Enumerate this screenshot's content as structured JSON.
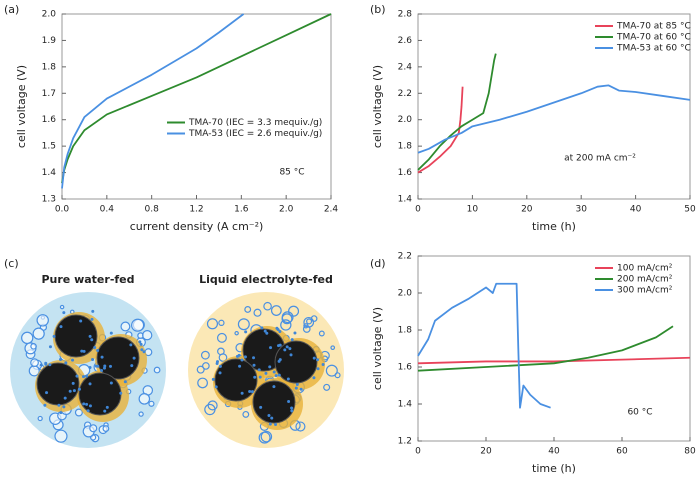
{
  "chart_data": [
    {
      "type": "line",
      "panel_label": "(a)",
      "xlabel": "current density (A cm⁻²)",
      "ylabel": "cell voltage (V)",
      "annotation": "85 °C",
      "xlim": [
        0,
        2.4
      ],
      "xticks": [
        {
          "value": 0,
          "label": "0.0"
        },
        0.4,
        0.8,
        1.2,
        1.6,
        {
          "value": 2,
          "label": "2.0"
        },
        2.4
      ],
      "ylim": [
        1.3,
        2.0
      ],
      "yticks": [
        1.3,
        1.4,
        1.5,
        1.6,
        1.7,
        1.8,
        1.9,
        {
          "value": 2,
          "label": "2.0"
        }
      ],
      "legend": "center right",
      "series": [
        {
          "name": "TMA-70 (IEC = 3.3 mequiv./g)",
          "color": "#2e8b2e",
          "x": [
            0,
            0.02,
            0.05,
            0.1,
            0.2,
            0.4,
            0.8,
            1.2,
            1.6,
            2.0,
            2.4
          ],
          "values": [
            1.36,
            1.41,
            1.45,
            1.5,
            1.56,
            1.62,
            1.69,
            1.76,
            1.84,
            1.92,
            2.0
          ]
        },
        {
          "name": "TMA-53 (IEC = 2.6 mequiv./g)",
          "color": "#4a90e2",
          "x": [
            0,
            0.02,
            0.05,
            0.1,
            0.2,
            0.4,
            0.8,
            1.2,
            1.4,
            1.62
          ],
          "values": [
            1.34,
            1.42,
            1.47,
            1.53,
            1.61,
            1.68,
            1.77,
            1.87,
            1.93,
            2.0
          ]
        }
      ]
    },
    {
      "type": "line",
      "panel_label": "(b)",
      "xlabel": "time (h)",
      "ylabel": "cell voltage (V)",
      "annotation": "at 200 mA cm⁻²",
      "xlim": [
        0,
        50
      ],
      "xticks": [
        0,
        10,
        20,
        30,
        40,
        50
      ],
      "ylim": [
        1.4,
        2.8
      ],
      "yticks": [
        1.4,
        1.6,
        1.8,
        {
          "value": 2,
          "label": "2.0"
        },
        2.2,
        2.4,
        2.6,
        2.8
      ],
      "legend": "upper right",
      "series": [
        {
          "name": "TMA-70 at 85 °C",
          "color": "#e8435a",
          "x": [
            0,
            2,
            4,
            6,
            7.5,
            7.8,
            8,
            8.2
          ],
          "values": [
            1.6,
            1.65,
            1.72,
            1.8,
            1.9,
            2.0,
            2.1,
            2.25
          ]
        },
        {
          "name": "TMA-70 at 60 °C",
          "color": "#2e8b2e",
          "x": [
            0,
            2,
            4,
            6,
            8,
            10,
            12,
            13,
            14,
            14.3
          ],
          "values": [
            1.62,
            1.7,
            1.8,
            1.88,
            1.95,
            2.0,
            2.05,
            2.2,
            2.45,
            2.5
          ]
        },
        {
          "name": "TMA-53 at 60 °C",
          "color": "#4a90e2",
          "x": [
            0,
            2,
            5,
            8,
            10,
            15,
            20,
            25,
            30,
            33,
            35,
            37,
            40,
            45,
            50
          ],
          "values": [
            1.75,
            1.78,
            1.85,
            1.9,
            1.95,
            2.0,
            2.06,
            2.13,
            2.2,
            2.25,
            2.26,
            2.22,
            2.21,
            2.18,
            2.15
          ]
        }
      ]
    },
    {
      "type": "line",
      "panel_label": "(d)",
      "xlabel": "time (h)",
      "ylabel": "cell voltage (V)",
      "annotation": "60 °C",
      "xlim": [
        0,
        80
      ],
      "xticks": [
        0,
        20,
        40,
        60,
        80
      ],
      "ylim": [
        1.2,
        2.2
      ],
      "yticks": [
        1.2,
        1.4,
        1.6,
        1.8,
        {
          "value": 2,
          "label": "2.0"
        },
        2.2
      ],
      "legend": "upper right",
      "series": [
        {
          "name": "100 mA/cm²",
          "color": "#e8435a",
          "x": [
            0,
            20,
            40,
            60,
            80
          ],
          "values": [
            1.62,
            1.63,
            1.63,
            1.64,
            1.65
          ]
        },
        {
          "name": "200 mA/cm²",
          "color": "#2e8b2e",
          "x": [
            0,
            20,
            40,
            50,
            60,
            70,
            75
          ],
          "values": [
            1.58,
            1.6,
            1.62,
            1.65,
            1.69,
            1.76,
            1.82
          ]
        },
        {
          "name": "300 mA/cm²",
          "color": "#4a90e2",
          "x": [
            0,
            3,
            5,
            10,
            15,
            20,
            22,
            23,
            29,
            29.5,
            30,
            31,
            33,
            36,
            39
          ],
          "values": [
            1.66,
            1.75,
            1.85,
            1.92,
            1.97,
            2.03,
            2.0,
            2.05,
            2.05,
            1.7,
            1.38,
            1.5,
            1.45,
            1.4,
            1.38
          ]
        }
      ]
    }
  ],
  "diagram": {
    "label": "(c)",
    "panels": [
      {
        "title": "Pure water-fed"
      },
      {
        "title": "Liquid electrolyte-fed"
      }
    ]
  }
}
